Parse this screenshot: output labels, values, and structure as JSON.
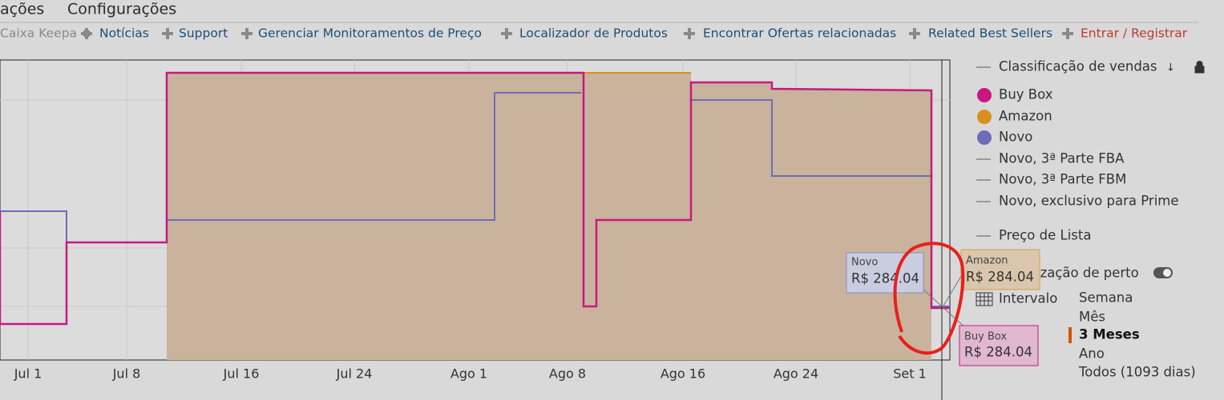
{
  "menu": [
    "ações",
    "Configurações"
  ],
  "nav": [
    "Caixa Keepa",
    "Notícias",
    "Support",
    "Gerenciar Monitoramentos de Preço",
    "Localizador de Produtos",
    "Encontrar Ofertas relacionadas",
    "Related Best Sellers",
    "Entrar / Registrar"
  ],
  "chart": {
    "xticks": [
      "Jul 1",
      "Jul 8",
      "Jul 16",
      "Jul 24",
      "Ago 1",
      "Ago 8",
      "Ago 16",
      "Ago 24",
      "Set 1"
    ],
    "tooltips": [
      {
        "name": "Novo",
        "value": "R$ 284.04"
      },
      {
        "name": "Amazon",
        "value": "R$ 284.04"
      },
      {
        "name": "Buy Box",
        "value": "R$ 284.04"
      }
    ]
  },
  "legend": {
    "sales_rank": "Classificação de vendas",
    "items": [
      "Buy Box",
      "Amazon",
      "Novo",
      "Novo, 3ª Parte FBA",
      "Novo, 3ª Parte FBM",
      "Novo, exclusivo para Prime",
      "Preço de Lista"
    ],
    "close_view": "ização de perto",
    "range_label": "Intervalo",
    "ranges": [
      "Semana",
      "Mês",
      "3 Meses",
      "Ano",
      "Todos (1093 dias)"
    ]
  }
}
